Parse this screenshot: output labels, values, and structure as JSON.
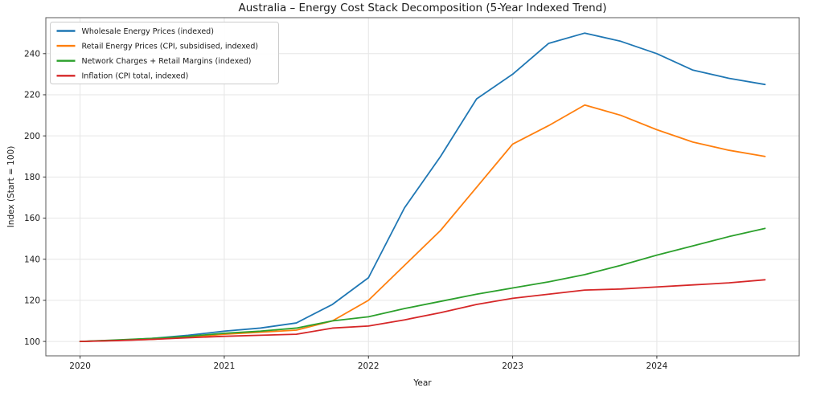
{
  "figure": {
    "background": "#ffffff",
    "grid_color": "#e6e6e6",
    "spine_color": "#5a5a5a",
    "tick_mark_color": "#333333",
    "text_color": "#1a1a1a",
    "legend_border_color": "#cccccc",
    "legend_background": "#ffffff"
  },
  "chart_data": {
    "type": "line",
    "title": "Australia – Energy Cost Stack Decomposition (5-Year Indexed Trend)",
    "xlabel": "Year",
    "ylabel": "Index (Start = 100)",
    "grid": true,
    "legend_position": "upper left",
    "x_ticks": [
      2020,
      2021,
      2022,
      2023,
      2024
    ],
    "y_ticks": [
      100,
      120,
      140,
      160,
      180,
      200,
      220,
      240
    ],
    "xlim": [
      2019.7625,
      2024.9875
    ],
    "ylim": [
      93,
      257.5
    ],
    "x": [
      2020.0,
      2020.25,
      2020.5,
      2020.75,
      2021.0,
      2021.25,
      2021.5,
      2021.75,
      2022.0,
      2022.25,
      2022.5,
      2022.75,
      2023.0,
      2023.25,
      2023.5,
      2023.75,
      2024.0,
      2024.25,
      2024.5,
      2024.75
    ],
    "series": [
      {
        "name": "Wholesale Energy Prices (indexed)",
        "slug": "wholesale-energy-prices",
        "color": "#1f77b4",
        "values": [
          100,
          100.5,
          101.5,
          103,
          105,
          106.5,
          109,
          118,
          131,
          165,
          190,
          218,
          230,
          245,
          250,
          246,
          240,
          232,
          228,
          225
        ]
      },
      {
        "name": "Retail Energy Prices (CPI, subsidised, indexed)",
        "slug": "retail-energy-prices",
        "color": "#ff7f0e",
        "values": [
          100,
          100.5,
          101,
          102,
          103.5,
          104.5,
          105.5,
          110,
          120,
          137,
          154,
          175,
          196,
          205,
          215,
          210,
          203,
          197,
          193,
          190
        ]
      },
      {
        "name": "Network Charges + Retail Margins (indexed)",
        "slug": "network-charges-retail-margins",
        "color": "#2ca02c",
        "values": [
          100,
          100.7,
          101.5,
          102.5,
          104,
          105,
          106.5,
          110,
          112,
          116,
          119.5,
          123,
          126,
          129,
          132.5,
          137,
          142,
          146.5,
          151,
          155
        ]
      },
      {
        "name": "Inflation (CPI total, indexed)",
        "slug": "inflation-cpi-total",
        "color": "#d62728",
        "values": [
          100,
          100.4,
          101,
          101.8,
          102.5,
          103,
          103.5,
          106.5,
          107.5,
          110.5,
          114,
          118,
          121,
          123,
          125,
          125.5,
          126.5,
          127.5,
          128.5,
          130
        ]
      }
    ]
  }
}
